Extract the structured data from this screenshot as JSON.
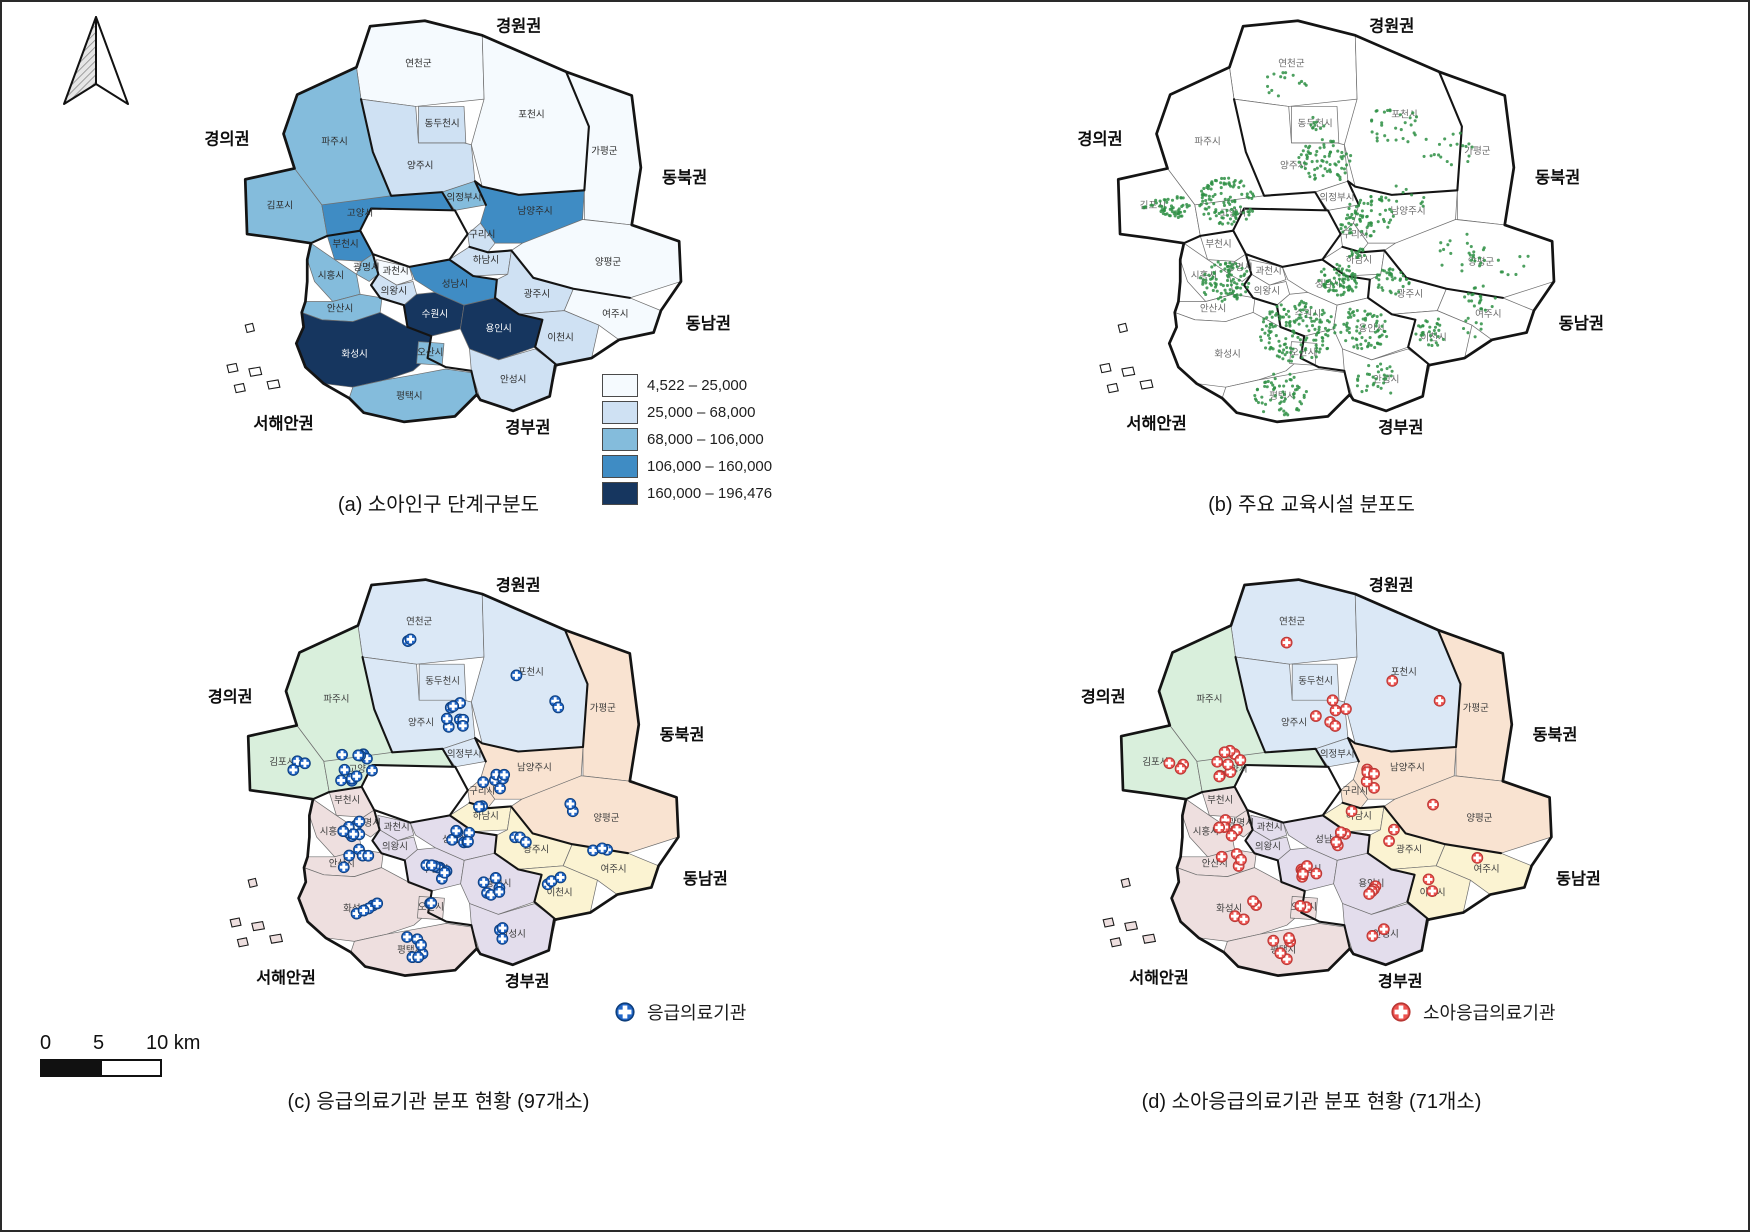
{
  "panels": {
    "a": {
      "caption": "(a) 소아인구 단계구분도"
    },
    "b": {
      "caption": "(b) 주요 교육시설 분포도"
    },
    "c": {
      "caption": "(c) 응급의료기관 분포 현황 (97개소)",
      "legend_label": "응급의료기관"
    },
    "d": {
      "caption": "(d) 소아응급의료기관 분포 현황 (71개소)",
      "legend_label": "소아응급의료기관"
    }
  },
  "choropleth": {
    "colors": [
      "#f5fafe",
      "#cfe1f3",
      "#84bcdc",
      "#3f8cc4",
      "#16365f"
    ],
    "classes": [
      "4,522 – 25,000",
      "25,000 – 68,000",
      "68,000 – 106,000",
      "106,000 – 160,000",
      "160,000 – 196,476"
    ]
  },
  "zones": {
    "gyeongui": {
      "label": "경의권",
      "color": "#d9efdc"
    },
    "gyeongwon": {
      "label": "경원권",
      "color": "#dbe8f6"
    },
    "dongbuk": {
      "label": "동북권",
      "color": "#f9e3d1"
    },
    "dongnam": {
      "label": "동남권",
      "color": "#fbf3d2"
    },
    "gyeongbu": {
      "label": "경부권",
      "color": "#e3ddec"
    },
    "seohaean": {
      "label": "서해안권",
      "color": "#eedfdf"
    }
  },
  "districts": [
    {
      "id": "yeoncheon",
      "label": "연천군",
      "choro": 0,
      "zone": "gyeongwon"
    },
    {
      "id": "pocheon",
      "label": "포천시",
      "choro": 0,
      "zone": "gyeongwon"
    },
    {
      "id": "gapyeong",
      "label": "가평군",
      "choro": 0,
      "zone": "dongbuk"
    },
    {
      "id": "paju",
      "label": "파주시",
      "choro": 2,
      "zone": "gyeongui"
    },
    {
      "id": "yangju",
      "label": "양주시",
      "choro": 1,
      "zone": "gyeongwon"
    },
    {
      "id": "gimpo",
      "label": "김포시",
      "choro": 2,
      "zone": "gyeongui"
    },
    {
      "id": "goyang",
      "label": "고양시",
      "choro": 3,
      "zone": "gyeongui"
    },
    {
      "id": "namyangju",
      "label": "남양주시",
      "choro": 3,
      "zone": "dongbuk"
    },
    {
      "id": "yangpyeong",
      "label": "양평군",
      "choro": 0,
      "zone": "dongbuk"
    },
    {
      "id": "dongducheon",
      "label": "동두천시",
      "choro": 1,
      "zone": "gyeongwon"
    },
    {
      "id": "uijeongbu",
      "label": "의정부시",
      "choro": 2,
      "zone": "gyeongwon"
    },
    {
      "id": "guri",
      "label": "구리시",
      "choro": 1,
      "zone": "dongbuk"
    },
    {
      "id": "hanam",
      "label": "하남시",
      "choro": 1,
      "zone": "dongnam"
    },
    {
      "id": "bucheon",
      "label": "부천시",
      "choro": 3,
      "zone": "seohaean"
    },
    {
      "id": "gwangmyeong",
      "label": "광명시",
      "choro": 2,
      "zone": "seohaean"
    },
    {
      "id": "siheung",
      "label": "시흥시",
      "choro": 2,
      "zone": "seohaean"
    },
    {
      "id": "gwacheon",
      "label": "과천시",
      "choro": 0,
      "zone": "gyeongbu"
    },
    {
      "id": "uiwang",
      "label": "의왕시",
      "choro": 1,
      "zone": "gyeongbu"
    },
    {
      "id": "seongnam",
      "label": "성남시",
      "choro": 3,
      "zone": "gyeongbu"
    },
    {
      "id": "gwangju",
      "label": "광주시",
      "choro": 1,
      "zone": "dongnam"
    },
    {
      "id": "ansan",
      "label": "안산시",
      "choro": 2,
      "zone": "seohaean"
    },
    {
      "id": "suwon",
      "label": "수원시",
      "choro": 4,
      "zone": "gyeongbu"
    },
    {
      "id": "yongin",
      "label": "용인시",
      "choro": 4,
      "zone": "gyeongbu"
    },
    {
      "id": "yeoju",
      "label": "여주시",
      "choro": 0,
      "zone": "dongnam"
    },
    {
      "id": "icheon",
      "label": "이천시",
      "choro": 1,
      "zone": "dongnam"
    },
    {
      "id": "hwaseong",
      "label": "화성시",
      "choro": 4,
      "zone": "seohaean"
    },
    {
      "id": "osan",
      "label": "오산시",
      "choro": 2,
      "zone": "seohaean"
    },
    {
      "id": "pyeongtaek",
      "label": "평택시",
      "choro": 2,
      "zone": "seohaean"
    },
    {
      "id": "anseong",
      "label": "안성시",
      "choro": 1,
      "zone": "gyeongbu"
    }
  ],
  "markers": {
    "c": {
      "name": "emergency-center-marker",
      "color": "#2166c8",
      "outline": "#0d3e7c",
      "clusters": [
        [
          285,
          220,
          26,
          12
        ],
        [
          228,
          222,
          12,
          3
        ],
        [
          282,
          292,
          16,
          8
        ],
        [
          288,
          328,
          18,
          5
        ],
        [
          400,
          165,
          22,
          8
        ],
        [
          442,
          235,
          16,
          6
        ],
        [
          428,
          272,
          8,
          2
        ],
        [
          408,
          300,
          14,
          7
        ],
        [
          376,
          338,
          14,
          8
        ],
        [
          300,
          382,
          22,
          5
        ],
        [
          435,
          352,
          18,
          6
        ],
        [
          468,
          300,
          12,
          3
        ],
        [
          512,
          352,
          14,
          3
        ],
        [
          560,
          320,
          14,
          3
        ],
        [
          520,
          268,
          12,
          2
        ],
        [
          520,
          155,
          15,
          2
        ],
        [
          346,
          424,
          18,
          6
        ],
        [
          452,
          408,
          14,
          3
        ],
        [
          370,
          378,
          7,
          2
        ],
        [
          350,
          82,
          12,
          2
        ],
        [
          470,
          122,
          8,
          1
        ]
      ]
    },
    "d": {
      "name": "pediatric-emergency-center-marker",
      "color": "#ee5350",
      "outline": "#b73734",
      "clusters": [
        [
          285,
          220,
          24,
          9
        ],
        [
          228,
          222,
          12,
          3
        ],
        [
          282,
          292,
          16,
          6
        ],
        [
          288,
          328,
          16,
          4
        ],
        [
          400,
          165,
          22,
          6
        ],
        [
          442,
          235,
          16,
          5
        ],
        [
          428,
          272,
          6,
          1
        ],
        [
          408,
          300,
          14,
          5
        ],
        [
          376,
          338,
          14,
          6
        ],
        [
          300,
          382,
          20,
          4
        ],
        [
          435,
          352,
          18,
          4
        ],
        [
          468,
          300,
          12,
          2
        ],
        [
          512,
          352,
          12,
          2
        ],
        [
          560,
          320,
          8,
          1
        ],
        [
          520,
          268,
          8,
          1
        ],
        [
          520,
          155,
          10,
          1
        ],
        [
          346,
          424,
          18,
          5
        ],
        [
          452,
          408,
          12,
          2
        ],
        [
          370,
          378,
          7,
          2
        ],
        [
          350,
          82,
          8,
          1
        ],
        [
          470,
          122,
          6,
          1
        ]
      ]
    }
  },
  "education_dots": {
    "color": "#2e8f44",
    "clusters": [
      [
        288,
        212,
        32,
        110
      ],
      [
        230,
        218,
        16,
        40
      ],
      [
        285,
        300,
        28,
        90
      ],
      [
        395,
        168,
        30,
        70
      ],
      [
        445,
        228,
        28,
        60
      ],
      [
        410,
        298,
        22,
        70
      ],
      [
        365,
        355,
        42,
        150
      ],
      [
        435,
        352,
        30,
        70
      ],
      [
        346,
        424,
        30,
        60
      ],
      [
        452,
        408,
        24,
        30
      ],
      [
        470,
        298,
        20,
        35
      ],
      [
        512,
        355,
        20,
        30
      ],
      [
        565,
        318,
        18,
        20
      ],
      [
        545,
        268,
        30,
        25
      ],
      [
        525,
        155,
        32,
        20
      ],
      [
        472,
        130,
        30,
        30
      ],
      [
        352,
        82,
        24,
        15
      ],
      [
        385,
        126,
        10,
        10
      ],
      [
        430,
        270,
        10,
        15
      ],
      [
        418,
        242,
        8,
        10
      ],
      [
        208,
        220,
        12,
        15
      ],
      [
        560,
        350,
        15,
        8
      ],
      [
        600,
        280,
        20,
        8
      ],
      [
        480,
        210,
        25,
        12
      ]
    ]
  },
  "scalebar": {
    "t0": "0",
    "t1": "5",
    "t2": "10 km"
  }
}
